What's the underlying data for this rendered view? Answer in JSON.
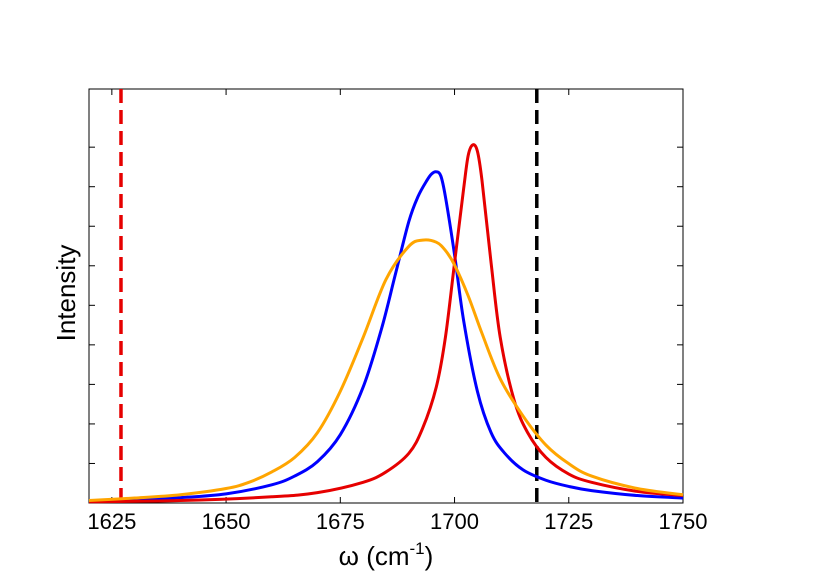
{
  "chart_data": {
    "type": "line",
    "xlabel": "ω (cm⁻¹)",
    "xlabel_base": "ω (cm",
    "xlabel_sup": "-1",
    "xlabel_close": ")",
    "ylabel": "Intensity",
    "xlim": [
      1620,
      1750
    ],
    "ylim": [
      0,
      1.0
    ],
    "x_ticks": [
      1625,
      1650,
      1675,
      1700,
      1725,
      1750
    ],
    "y_tick_labels": [],
    "grid": false,
    "legend": "none",
    "series": [
      {
        "color": "#0000ff",
        "x": [
          1620,
          1630,
          1640,
          1650,
          1660,
          1665,
          1670,
          1675,
          1680,
          1684,
          1687,
          1690,
          1692,
          1694,
          1695,
          1696,
          1697,
          1698,
          1700,
          1702,
          1705,
          1708,
          1711,
          1715,
          1720,
          1725,
          1730,
          1740,
          1750
        ],
        "y": [
          0.005,
          0.008,
          0.013,
          0.022,
          0.044,
          0.065,
          0.1,
          0.165,
          0.28,
          0.42,
          0.55,
          0.68,
          0.74,
          0.78,
          0.795,
          0.8,
          0.79,
          0.74,
          0.6,
          0.44,
          0.27,
          0.17,
          0.12,
          0.08,
          0.055,
          0.04,
          0.03,
          0.018,
          0.012
        ]
      },
      {
        "color": "#e60000",
        "x": [
          1620,
          1640,
          1660,
          1670,
          1680,
          1685,
          1690,
          1693,
          1696,
          1698,
          1700,
          1702,
          1703,
          1704,
          1705,
          1706,
          1708,
          1710,
          1713,
          1716,
          1720,
          1725,
          1730,
          1740,
          1750
        ],
        "y": [
          0.003,
          0.006,
          0.015,
          0.025,
          0.05,
          0.075,
          0.12,
          0.18,
          0.28,
          0.4,
          0.58,
          0.76,
          0.84,
          0.865,
          0.85,
          0.78,
          0.58,
          0.4,
          0.25,
          0.17,
          0.11,
          0.07,
          0.05,
          0.028,
          0.018
        ]
      },
      {
        "color": "#ffa500",
        "x": [
          1620,
          1630,
          1640,
          1650,
          1655,
          1660,
          1665,
          1670,
          1675,
          1680,
          1685,
          1690,
          1693,
          1696,
          1698,
          1700,
          1703,
          1706,
          1710,
          1715,
          1720,
          1725,
          1730,
          1740,
          1750
        ],
        "y": [
          0.006,
          0.012,
          0.02,
          0.035,
          0.05,
          0.075,
          0.11,
          0.17,
          0.27,
          0.4,
          0.54,
          0.62,
          0.635,
          0.63,
          0.61,
          0.575,
          0.5,
          0.41,
          0.3,
          0.21,
          0.14,
          0.095,
          0.065,
          0.035,
          0.02
        ]
      }
    ],
    "vlines": [
      {
        "x": 1627,
        "color": "#e60000",
        "style": "dashed"
      },
      {
        "x": 1718,
        "color": "#000000",
        "style": "dashed"
      }
    ]
  }
}
